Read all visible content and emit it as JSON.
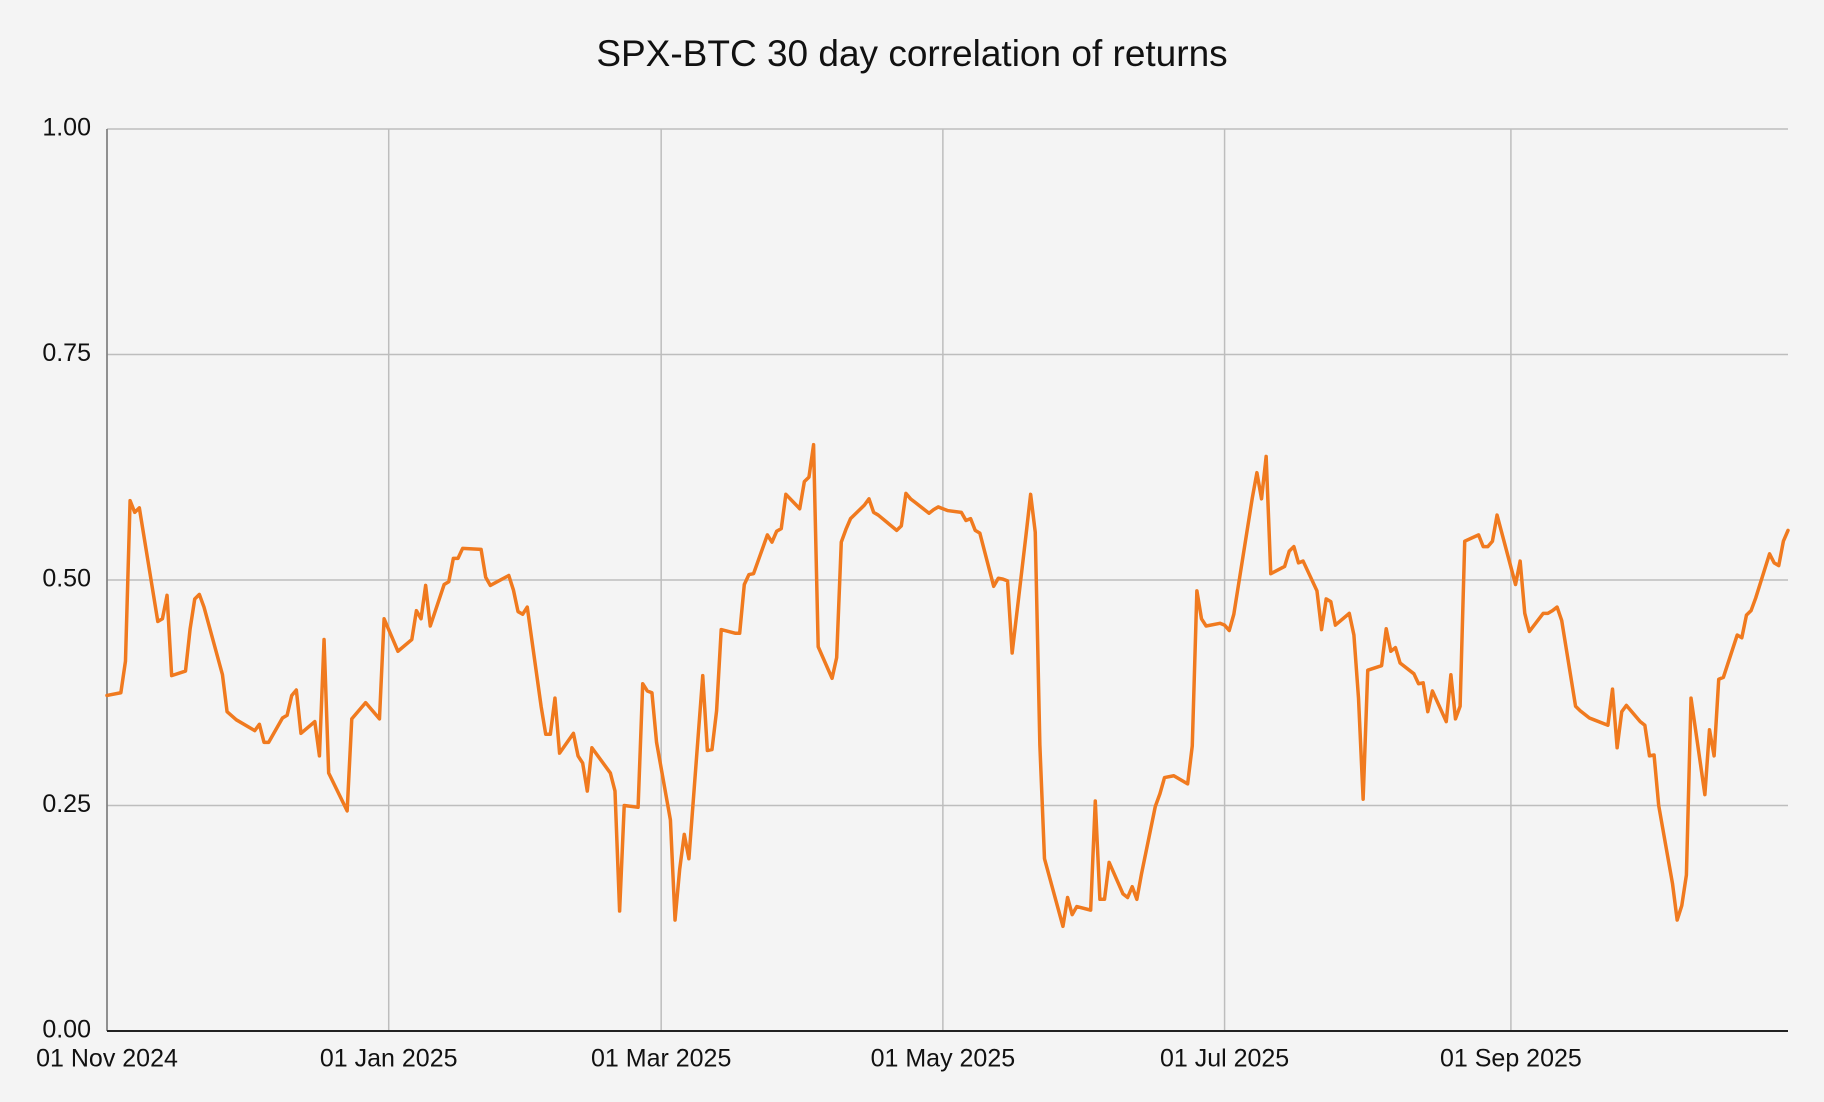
{
  "chart_data": {
    "type": "line",
    "title": "SPX-BTC 30 day correlation of returns",
    "color": "#f07a1f",
    "grid": true,
    "xlim": [
      "2024-11-01",
      "2025-10-31"
    ],
    "xticks": [
      {
        "value": "2024-11-01",
        "label": "01 Nov 2024"
      },
      {
        "value": "2025-01-01",
        "label": "01 Jan 2025"
      },
      {
        "value": "2025-03-01",
        "label": "01 Mar 2025"
      },
      {
        "value": "2025-05-01",
        "label": "01 May 2025"
      },
      {
        "value": "2025-07-01",
        "label": "01 Jul 2025"
      },
      {
        "value": "2025-09-01",
        "label": "01 Sep 2025"
      }
    ],
    "ylim": [
      0,
      1
    ],
    "yticks": [
      {
        "value": 0,
        "label": "0.00"
      },
      {
        "value": 0.25,
        "label": "0.25"
      },
      {
        "value": 0.5,
        "label": "0.50"
      },
      {
        "value": 0.75,
        "label": "0.75"
      },
      {
        "value": 1,
        "label": "1.00"
      }
    ],
    "x": [
      "2024-11-01",
      "2024-11-04",
      "2024-11-05",
      "2024-11-06",
      "2024-11-07",
      "2024-11-08",
      "2024-11-12",
      "2024-11-13",
      "2024-11-14",
      "2024-11-15",
      "2024-11-18",
      "2024-11-19",
      "2024-11-20",
      "2024-11-21",
      "2024-11-22",
      "2024-11-26",
      "2024-11-27",
      "2024-11-29",
      "2024-12-03",
      "2024-12-04",
      "2024-12-05",
      "2024-12-06",
      "2024-12-09",
      "2024-12-10",
      "2024-12-11",
      "2024-12-12",
      "2024-12-13",
      "2024-12-16",
      "2024-12-17",
      "2024-12-18",
      "2024-12-19",
      "2024-12-23",
      "2024-12-24",
      "2024-12-27",
      "2024-12-30",
      "2024-12-31",
      "2025-01-03",
      "2025-01-06",
      "2025-01-07",
      "2025-01-08",
      "2025-01-09",
      "2025-01-10",
      "2025-01-13",
      "2025-01-14",
      "2025-01-15",
      "2025-01-16",
      "2025-01-17",
      "2025-01-21",
      "2025-01-22",
      "2025-01-23",
      "2025-01-27",
      "2025-01-28",
      "2025-01-29",
      "2025-01-30",
      "2025-01-31",
      "2025-02-03",
      "2025-02-04",
      "2025-02-05",
      "2025-02-06",
      "2025-02-07",
      "2025-02-10",
      "2025-02-11",
      "2025-02-12",
      "2025-02-13",
      "2025-02-14",
      "2025-02-18",
      "2025-02-19",
      "2025-02-20",
      "2025-02-21",
      "2025-02-24",
      "2025-02-25",
      "2025-02-26",
      "2025-02-27",
      "2025-02-28",
      "2025-03-03",
      "2025-03-04",
      "2025-03-05",
      "2025-03-06",
      "2025-03-07",
      "2025-03-10",
      "2025-03-11",
      "2025-03-12",
      "2025-03-13",
      "2025-03-14",
      "2025-03-17",
      "2025-03-18",
      "2025-03-19",
      "2025-03-20",
      "2025-03-21",
      "2025-03-24",
      "2025-03-25",
      "2025-03-26",
      "2025-03-27",
      "2025-03-28",
      "2025-03-31",
      "2025-04-01",
      "2025-04-02",
      "2025-04-03",
      "2025-04-04",
      "2025-04-07",
      "2025-04-08",
      "2025-04-09",
      "2025-04-10",
      "2025-04-11",
      "2025-04-14",
      "2025-04-15",
      "2025-04-16",
      "2025-04-17",
      "2025-04-21",
      "2025-04-22",
      "2025-04-23",
      "2025-04-24",
      "2025-04-25",
      "2025-04-28",
      "2025-04-29",
      "2025-04-30",
      "2025-05-01",
      "2025-05-02",
      "2025-05-05",
      "2025-05-06",
      "2025-05-07",
      "2025-05-08",
      "2025-05-09",
      "2025-05-12",
      "2025-05-13",
      "2025-05-14",
      "2025-05-15",
      "2025-05-16",
      "2025-05-19",
      "2025-05-20",
      "2025-05-21",
      "2025-05-22",
      "2025-05-23",
      "2025-05-27",
      "2025-05-28",
      "2025-05-29",
      "2025-05-30",
      "2025-06-02",
      "2025-06-03",
      "2025-06-04",
      "2025-06-05",
      "2025-06-06",
      "2025-06-09",
      "2025-06-10",
      "2025-06-11",
      "2025-06-12",
      "2025-06-13",
      "2025-06-16",
      "2025-06-17",
      "2025-06-18",
      "2025-06-20",
      "2025-06-23",
      "2025-06-24",
      "2025-06-25",
      "2025-06-26",
      "2025-06-27",
      "2025-06-30",
      "2025-07-01",
      "2025-07-02",
      "2025-07-03",
      "2025-07-07",
      "2025-07-08",
      "2025-07-09",
      "2025-07-10",
      "2025-07-11",
      "2025-07-14",
      "2025-07-15",
      "2025-07-16",
      "2025-07-17",
      "2025-07-18",
      "2025-07-21",
      "2025-07-22",
      "2025-07-23",
      "2025-07-24",
      "2025-07-25",
      "2025-07-28",
      "2025-07-29",
      "2025-07-30",
      "2025-07-31",
      "2025-08-01",
      "2025-08-04",
      "2025-08-05",
      "2025-08-06",
      "2025-08-07",
      "2025-08-08",
      "2025-08-11",
      "2025-08-12",
      "2025-08-13",
      "2025-08-14",
      "2025-08-15",
      "2025-08-18",
      "2025-08-19",
      "2025-08-20",
      "2025-08-21",
      "2025-08-22",
      "2025-08-25",
      "2025-08-26",
      "2025-08-27",
      "2025-08-28",
      "2025-08-29",
      "2025-09-02",
      "2025-09-03",
      "2025-09-04",
      "2025-09-05",
      "2025-09-08",
      "2025-09-09",
      "2025-09-10",
      "2025-09-11",
      "2025-09-12",
      "2025-09-15",
      "2025-09-16",
      "2025-09-17",
      "2025-09-18",
      "2025-09-19",
      "2025-09-22",
      "2025-09-23",
      "2025-09-24",
      "2025-09-25",
      "2025-09-26",
      "2025-09-29",
      "2025-09-30",
      "2025-10-01",
      "2025-10-02",
      "2025-10-03",
      "2025-10-06",
      "2025-10-07",
      "2025-10-08",
      "2025-10-09",
      "2025-10-10",
      "2025-10-13",
      "2025-10-14",
      "2025-10-15",
      "2025-10-16",
      "2025-10-17",
      "2025-10-20",
      "2025-10-21",
      "2025-10-22",
      "2025-10-23",
      "2025-10-24",
      "2025-10-27",
      "2025-10-28",
      "2025-10-29",
      "2025-10-30",
      "2025-10-31"
    ],
    "values": [
      0.372,
      0.375,
      0.41,
      0.588,
      0.575,
      0.58,
      0.454,
      0.457,
      0.483,
      0.394,
      0.399,
      0.446,
      0.479,
      0.484,
      0.47,
      0.395,
      0.354,
      0.345,
      0.333,
      0.34,
      0.32,
      0.32,
      0.347,
      0.35,
      0.372,
      0.378,
      0.33,
      0.343,
      0.305,
      0.434,
      0.286,
      0.244,
      0.346,
      0.364,
      0.346,
      0.457,
      0.421,
      0.434,
      0.466,
      0.457,
      0.494,
      0.449,
      0.495,
      0.498,
      0.524,
      0.524,
      0.535,
      0.534,
      0.503,
      0.494,
      0.505,
      0.489,
      0.465,
      0.462,
      0.47,
      0.36,
      0.329,
      0.329,
      0.369,
      0.308,
      0.33,
      0.305,
      0.297,
      0.266,
      0.314,
      0.286,
      0.266,
      0.133,
      0.25,
      0.248,
      0.385,
      0.377,
      0.375,
      0.32,
      0.234,
      0.123,
      0.179,
      0.218,
      0.191,
      0.394,
      0.311,
      0.312,
      0.355,
      0.445,
      0.441,
      0.441,
      0.495,
      0.506,
      0.507,
      0.55,
      0.542,
      0.554,
      0.557,
      0.595,
      0.579,
      0.609,
      0.614,
      0.65,
      0.426,
      0.391,
      0.414,
      0.542,
      0.556,
      0.568,
      0.583,
      0.59,
      0.575,
      0.572,
      0.555,
      0.56,
      0.596,
      0.59,
      0.586,
      0.574,
      0.578,
      0.581,
      0.579,
      0.577,
      0.575,
      0.566,
      0.568,
      0.555,
      0.552,
      0.493,
      0.502,
      0.501,
      0.499,
      0.419,
      0.55,
      0.595,
      0.553,
      0.317,
      0.191,
      0.116,
      0.148,
      0.129,
      0.138,
      0.134,
      0.255,
      0.146,
      0.146,
      0.187,
      0.152,
      0.148,
      0.16,
      0.146,
      0.174,
      0.249,
      0.263,
      0.281,
      0.283,
      0.274,
      0.316,
      0.488,
      0.457,
      0.449,
      0.452,
      0.45,
      0.444,
      0.462,
      0.591,
      0.619,
      0.59,
      0.637,
      0.507,
      0.515,
      0.532,
      0.537,
      0.519,
      0.521,
      0.488,
      0.445,
      0.479,
      0.476,
      0.45,
      0.463,
      0.439,
      0.369,
      0.257,
      0.4,
      0.405,
      0.446,
      0.421,
      0.425,
      0.408,
      0.396,
      0.385,
      0.386,
      0.354,
      0.377,
      0.343,
      0.395,
      0.346,
      0.36,
      0.543,
      0.55,
      0.537,
      0.537,
      0.543,
      0.572,
      0.495,
      0.521,
      0.463,
      0.443,
      0.463,
      0.463,
      0.466,
      0.47,
      0.455,
      0.36,
      0.355,
      0.351,
      0.347,
      0.345,
      0.339,
      0.379,
      0.314,
      0.354,
      0.361,
      0.343,
      0.339,
      0.305,
      0.306,
      0.25,
      0.163,
      0.123,
      0.139,
      0.173,
      0.369,
      0.262,
      0.334,
      0.305,
      0.39,
      0.392,
      0.439,
      0.436,
      0.461,
      0.466,
      0.48,
      0.529,
      0.519,
      0.516,
      0.543,
      0.555
    ]
  }
}
